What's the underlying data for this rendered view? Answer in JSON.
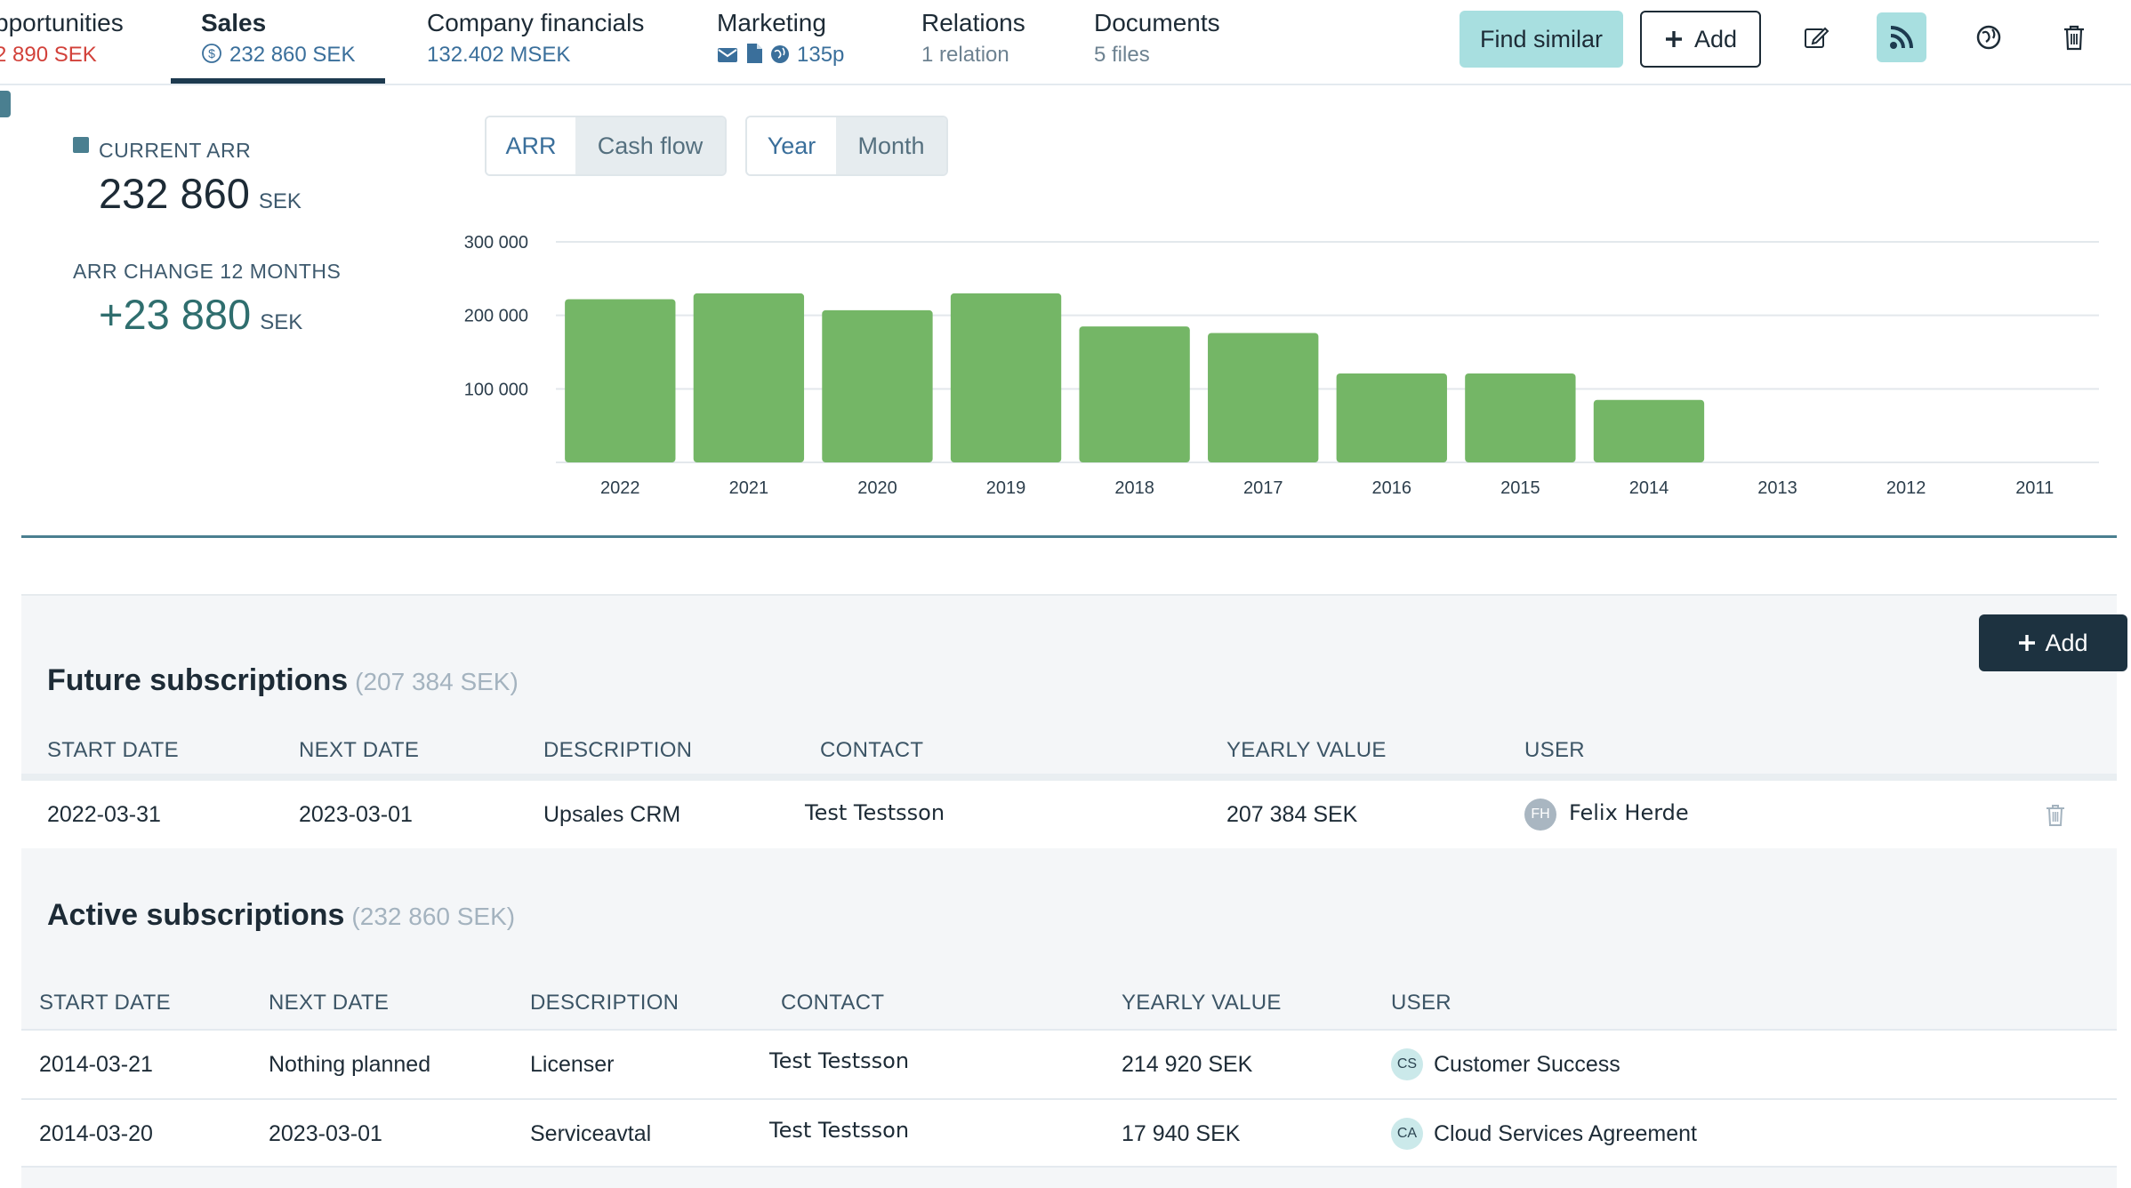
{
  "tabs": [
    {
      "label": "pportunities",
      "sub": "2 890 SEK"
    },
    {
      "label": "Sales",
      "sub": "232 860 SEK"
    },
    {
      "label": "Company financials",
      "sub": "132.402 MSEK"
    },
    {
      "label": "Marketing",
      "sub": "135p"
    },
    {
      "label": "Relations",
      "sub": "1 relation"
    },
    {
      "label": "Documents",
      "sub": "5 files"
    }
  ],
  "toolbar": {
    "find_similar": "Find similar",
    "add": "Add"
  },
  "stats": {
    "current_arr_label": "CURRENT ARR",
    "current_arr_value": "232 860",
    "current_arr_unit": "SEK",
    "change_label": "ARR CHANGE 12 MONTHS",
    "change_value": "+23 880",
    "change_unit": "SEK"
  },
  "toggles": {
    "arr": "ARR",
    "cash_flow": "Cash flow",
    "year": "Year",
    "month": "Month"
  },
  "chart_data": {
    "type": "bar",
    "categories": [
      "2022",
      "2021",
      "2020",
      "2019",
      "2018",
      "2017",
      "2016",
      "2015",
      "2014",
      "2013",
      "2012",
      "2011"
    ],
    "values": [
      222000,
      230000,
      207000,
      230000,
      185000,
      176000,
      121000,
      121000,
      85000,
      0,
      0,
      0
    ],
    "ylim": [
      0,
      300000
    ],
    "yticks": [
      "300 000",
      "200 000",
      "100 000"
    ],
    "ytick_values": [
      300000,
      200000,
      100000
    ],
    "grid": true,
    "bar_color": "#74b666"
  },
  "future": {
    "title": "Future subscriptions",
    "total": "(207 384 SEK)",
    "add_label": "Add",
    "headers": [
      "START DATE",
      "NEXT DATE",
      "DESCRIPTION",
      "CONTACT",
      "YEARLY VALUE",
      "USER"
    ],
    "rows": [
      {
        "start": "2022-03-31",
        "next": "2023-03-01",
        "description": "Upsales CRM",
        "contact": "Test Testsson",
        "value": "207 384 SEK",
        "initials": "FH",
        "user": "Felix Herde"
      }
    ]
  },
  "active": {
    "title": "Active subscriptions",
    "total": "(232 860 SEK)",
    "headers": [
      "START DATE",
      "NEXT DATE",
      "DESCRIPTION",
      "CONTACT",
      "YEARLY VALUE",
      "USER"
    ],
    "rows": [
      {
        "start": "2014-03-21",
        "next": "Nothing planned",
        "description": "Licenser",
        "contact": "Test Testsson",
        "value": "214 920 SEK",
        "initials": "CS",
        "user": "Customer Success"
      },
      {
        "start": "2014-03-20",
        "next": "2023-03-01",
        "description": "Serviceavtal",
        "contact": "Test Testsson",
        "value": "17 940 SEK",
        "initials": "CA",
        "user": "Cloud Services Agreement"
      }
    ]
  },
  "colors": {
    "accent_teal": "#a8dfe0",
    "dark_navy": "#1d3240",
    "bar_green": "#74b666",
    "red": "#d2413a",
    "link_blue": "#3a6f9b"
  }
}
